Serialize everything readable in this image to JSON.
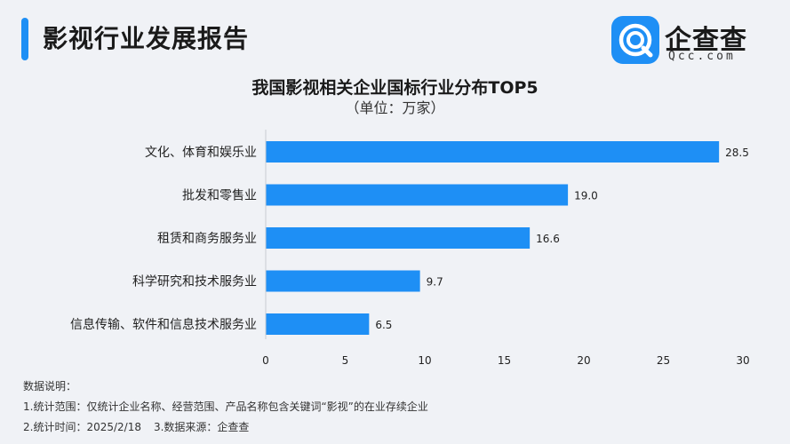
{
  "header": {
    "title": "影视行业发展报告",
    "logo_text": "企查查",
    "logo_sub": "Qcc.com",
    "accent_color": "#1e8ff5"
  },
  "chart_data": {
    "type": "bar",
    "orientation": "horizontal",
    "title": "我国影视相关企业国标行业分布TOP5",
    "subtitle": "（单位：万家）",
    "categories": [
      "文化、体育和娱乐业",
      "批发和零售业",
      "租赁和商务服务业",
      "科学研究和技术服务业",
      "信息传输、软件和信息技术服务业"
    ],
    "values": [
      28.5,
      19.0,
      16.6,
      9.7,
      6.5
    ],
    "value_labels": [
      "28.5",
      "19.0",
      "16.6",
      "9.7",
      "6.5"
    ],
    "xlim": [
      0,
      30
    ],
    "xticks": [
      "0",
      "5",
      "10",
      "15",
      "20",
      "25",
      "30"
    ],
    "bar_color": "#1e8ff5",
    "grid": false
  },
  "notes": {
    "heading": "数据说明：",
    "line1": "1.统计范围：仅统计企业名称、经营范围、产品名称包含关键词“影视”的在业存续企业",
    "line2a": "2.统计时间：2025/2/18",
    "line2b": "3.数据来源：企查查"
  }
}
